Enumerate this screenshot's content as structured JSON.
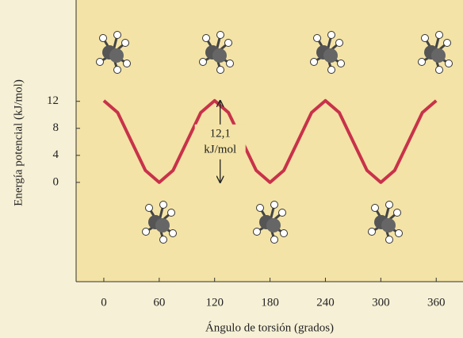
{
  "chart_data": {
    "type": "line",
    "xlabel": "Ángulo de torsión (grados)",
    "ylabel": "Energía potencial (kJ/mol)",
    "x": [
      0,
      15,
      30,
      45,
      60,
      75,
      90,
      105,
      120,
      135,
      150,
      165,
      180,
      195,
      210,
      225,
      240,
      255,
      270,
      285,
      300,
      315,
      330,
      345,
      360
    ],
    "series": [
      {
        "color": "#c8324a",
        "values": [
          12.1,
          10.33,
          6.05,
          1.77,
          0,
          1.77,
          6.05,
          10.33,
          12.1,
          10.33,
          6.05,
          1.77,
          0,
          1.77,
          6.05,
          10.33,
          12.1,
          10.33,
          6.05,
          1.77,
          0,
          1.77,
          6.05,
          10.33,
          12.1
        ]
      }
    ],
    "annotation": [
      "12,1",
      "kJ/mol"
    ],
    "xlim": [
      -30,
      389
    ],
    "ylim": [
      -14.7,
      27
    ],
    "xticks": [
      0,
      60,
      120,
      180,
      240,
      300,
      360
    ],
    "yticks": [
      0,
      4,
      8,
      12
    ]
  }
}
